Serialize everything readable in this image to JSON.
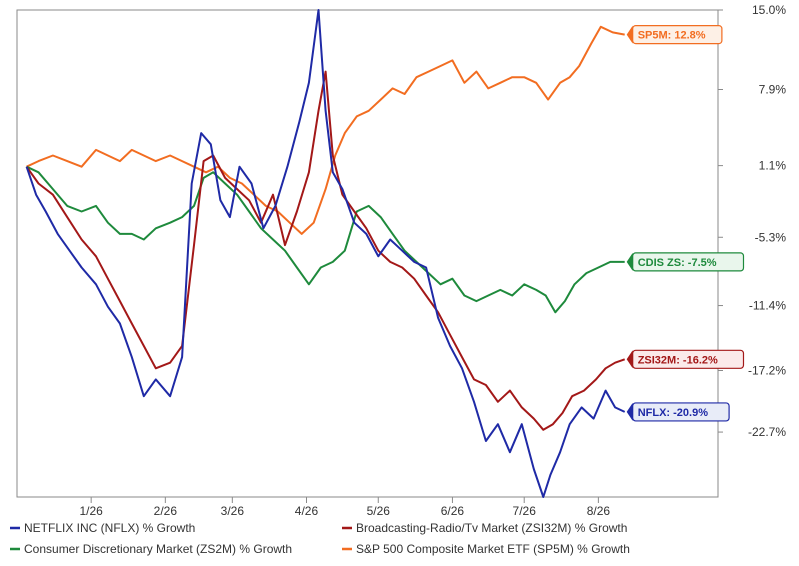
{
  "chart_data": {
    "type": "line",
    "title": "",
    "xlabel": "",
    "ylabel": "",
    "x_range": [
      "2025-12-01",
      "2026-09-20"
    ],
    "ylim": [
      -28.5,
      15.0
    ],
    "x_ticks": [
      {
        "label": "1/26",
        "date": "2026-01-01"
      },
      {
        "label": "2/26",
        "date": "2026-02-01"
      },
      {
        "label": "3/26",
        "date": "2026-03-01"
      },
      {
        "label": "4/26",
        "date": "2026-04-01"
      },
      {
        "label": "5/26",
        "date": "2026-05-01"
      },
      {
        "label": "6/26",
        "date": "2026-06-01"
      },
      {
        "label": "7/26",
        "date": "2026-07-01"
      },
      {
        "label": "8/26",
        "date": "2026-08-01"
      }
    ],
    "y_ticks": [
      {
        "value": 15.0,
        "label": "15.0%"
      },
      {
        "value": 7.9,
        "label": "7.9%"
      },
      {
        "value": 1.1,
        "label": "1.1%"
      },
      {
        "value": -5.3,
        "label": "-5.3%"
      },
      {
        "value": -11.4,
        "label": "-11.4%"
      },
      {
        "value": -17.2,
        "label": "-17.2%"
      },
      {
        "value": -22.7,
        "label": "-22.7%"
      }
    ],
    "grid": false,
    "legend_position": "bottom",
    "series": [
      {
        "name": "NETFLIX INC (NFLX) % Growth",
        "color": "#1f2aa6",
        "badge": "NFLX: -20.9%",
        "x": [
          "2025-12-05",
          "2025-12-09",
          "2025-12-13",
          "2025-12-18",
          "2025-12-23",
          "2025-12-28",
          "2026-01-03",
          "2026-01-08",
          "2026-01-13",
          "2026-01-18",
          "2026-01-23",
          "2026-01-28",
          "2026-02-03",
          "2026-02-08",
          "2026-02-12",
          "2026-02-16",
          "2026-02-20",
          "2026-02-24",
          "2026-02-28",
          "2026-03-04",
          "2026-03-09",
          "2026-03-14",
          "2026-03-19",
          "2026-03-24",
          "2026-03-29",
          "2026-04-02",
          "2026-04-06",
          "2026-04-09",
          "2026-04-12",
          "2026-04-16",
          "2026-04-21",
          "2026-04-26",
          "2026-05-01",
          "2026-05-06",
          "2026-05-11",
          "2026-05-16",
          "2026-05-21",
          "2026-05-26",
          "2026-05-31",
          "2026-06-05",
          "2026-06-10",
          "2026-06-15",
          "2026-06-20",
          "2026-06-25",
          "2026-06-30",
          "2026-07-05",
          "2026-07-09",
          "2026-07-12",
          "2026-07-16",
          "2026-07-20",
          "2026-07-25",
          "2026-07-30",
          "2026-08-04",
          "2026-08-08",
          "2026-08-12"
        ],
        "values": [
          1.0,
          -1.5,
          -3.0,
          -5.0,
          -6.5,
          -8.0,
          -9.5,
          -11.5,
          -13.0,
          -16.0,
          -19.5,
          -18.0,
          -19.5,
          -16.0,
          -0.5,
          4.0,
          3.0,
          -2.0,
          -3.5,
          1.0,
          -0.5,
          -4.5,
          -2.5,
          1.0,
          5.0,
          8.5,
          15.0,
          6.0,
          0.5,
          -1.0,
          -4.0,
          -5.0,
          -7.0,
          -5.5,
          -6.5,
          -7.5,
          -8.0,
          -12.5,
          -15.0,
          -17.0,
          -20.0,
          -23.5,
          -22.0,
          -24.5,
          -22.0,
          -26.0,
          -28.5,
          -26.5,
          -24.5,
          -22.0,
          -20.5,
          -21.5,
          -19.0,
          -20.5,
          -20.9
        ]
      },
      {
        "name": "Broadcasting-Radio/Tv Market (ZSI32M) % Growth",
        "color": "#a31818",
        "badge": "ZSI32M: -16.2%",
        "x": [
          "2025-12-05",
          "2025-12-10",
          "2025-12-16",
          "2025-12-22",
          "2025-12-28",
          "2026-01-03",
          "2026-01-08",
          "2026-01-13",
          "2026-01-18",
          "2026-01-23",
          "2026-01-28",
          "2026-02-03",
          "2026-02-08",
          "2026-02-13",
          "2026-02-17",
          "2026-02-21",
          "2026-02-26",
          "2026-03-03",
          "2026-03-08",
          "2026-03-13",
          "2026-03-18",
          "2026-03-23",
          "2026-03-28",
          "2026-04-02",
          "2026-04-06",
          "2026-04-09",
          "2026-04-12",
          "2026-04-16",
          "2026-04-21",
          "2026-04-26",
          "2026-05-01",
          "2026-05-06",
          "2026-05-11",
          "2026-05-16",
          "2026-05-21",
          "2026-05-26",
          "2026-05-31",
          "2026-06-05",
          "2026-06-10",
          "2026-06-15",
          "2026-06-20",
          "2026-06-25",
          "2026-06-30",
          "2026-07-05",
          "2026-07-09",
          "2026-07-13",
          "2026-07-17",
          "2026-07-21",
          "2026-07-26",
          "2026-07-31",
          "2026-08-04",
          "2026-08-08",
          "2026-08-12"
        ],
        "values": [
          1.0,
          -0.5,
          -1.5,
          -3.5,
          -5.5,
          -7.0,
          -9.0,
          -11.0,
          -13.0,
          -15.0,
          -17.0,
          -16.5,
          -15.0,
          -6.0,
          1.5,
          2.0,
          0.0,
          -1.0,
          -2.0,
          -4.0,
          -1.5,
          -6.0,
          -3.0,
          0.5,
          6.0,
          9.5,
          2.0,
          -1.5,
          -3.0,
          -4.5,
          -6.5,
          -7.5,
          -8.0,
          -9.0,
          -10.5,
          -12.0,
          -14.0,
          -16.0,
          -18.0,
          -18.5,
          -20.0,
          -19.0,
          -20.5,
          -21.5,
          -22.5,
          -22.0,
          -21.0,
          -19.5,
          -19.0,
          -18.0,
          -17.0,
          -16.5,
          -16.2
        ]
      },
      {
        "name": "Consumer Discretionary Market (ZS2M) % Growth",
        "color": "#1e8a3c",
        "badge": "CDIS ZS: -7.5%",
        "x": [
          "2025-12-05",
          "2025-12-10",
          "2025-12-16",
          "2025-12-22",
          "2025-12-28",
          "2026-01-03",
          "2026-01-08",
          "2026-01-13",
          "2026-01-18",
          "2026-01-23",
          "2026-01-28",
          "2026-02-03",
          "2026-02-08",
          "2026-02-13",
          "2026-02-17",
          "2026-02-21",
          "2026-02-26",
          "2026-03-03",
          "2026-03-08",
          "2026-03-13",
          "2026-03-18",
          "2026-03-23",
          "2026-03-28",
          "2026-04-02",
          "2026-04-07",
          "2026-04-12",
          "2026-04-17",
          "2026-04-22",
          "2026-04-27",
          "2026-05-02",
          "2026-05-07",
          "2026-05-12",
          "2026-05-17",
          "2026-05-22",
          "2026-05-27",
          "2026-06-01",
          "2026-06-06",
          "2026-06-11",
          "2026-06-16",
          "2026-06-21",
          "2026-06-26",
          "2026-07-01",
          "2026-07-06",
          "2026-07-10",
          "2026-07-14",
          "2026-07-18",
          "2026-07-22",
          "2026-07-27",
          "2026-08-01",
          "2026-08-06",
          "2026-08-12"
        ],
        "values": [
          1.0,
          0.5,
          -1.0,
          -2.5,
          -3.0,
          -2.5,
          -4.0,
          -5.0,
          -5.0,
          -5.5,
          -4.5,
          -4.0,
          -3.5,
          -2.5,
          0.0,
          0.5,
          -0.5,
          -1.5,
          -3.0,
          -4.5,
          -5.5,
          -6.5,
          -8.0,
          -9.5,
          -8.0,
          -7.5,
          -6.5,
          -3.0,
          -2.5,
          -3.5,
          -5.0,
          -6.5,
          -7.5,
          -8.5,
          -9.5,
          -9.0,
          -10.5,
          -11.0,
          -10.5,
          -10.0,
          -10.5,
          -9.5,
          -10.0,
          -10.5,
          -12.0,
          -11.0,
          -9.5,
          -8.5,
          -8.0,
          -7.5,
          -7.5
        ]
      },
      {
        "name": "S&P 500 Composite Market ETF (SP5M) % Growth",
        "color": "#f26d21",
        "badge": "SP5M: 12.8%",
        "x": [
          "2025-12-05",
          "2025-12-10",
          "2025-12-16",
          "2025-12-22",
          "2025-12-28",
          "2026-01-03",
          "2026-01-08",
          "2026-01-13",
          "2026-01-18",
          "2026-01-23",
          "2026-01-28",
          "2026-02-03",
          "2026-02-08",
          "2026-02-13",
          "2026-02-18",
          "2026-02-23",
          "2026-02-28",
          "2026-03-05",
          "2026-03-10",
          "2026-03-15",
          "2026-03-20",
          "2026-03-25",
          "2026-03-30",
          "2026-04-04",
          "2026-04-09",
          "2026-04-13",
          "2026-04-17",
          "2026-04-22",
          "2026-04-27",
          "2026-05-02",
          "2026-05-07",
          "2026-05-12",
          "2026-05-17",
          "2026-05-22",
          "2026-05-27",
          "2026-06-01",
          "2026-06-06",
          "2026-06-11",
          "2026-06-16",
          "2026-06-21",
          "2026-06-26",
          "2026-07-01",
          "2026-07-06",
          "2026-07-11",
          "2026-07-16",
          "2026-07-20",
          "2026-07-24",
          "2026-07-29",
          "2026-08-02",
          "2026-08-07",
          "2026-08-12"
        ],
        "values": [
          1.0,
          1.5,
          2.0,
          1.5,
          1.0,
          2.5,
          2.0,
          1.5,
          2.5,
          2.0,
          1.5,
          2.0,
          1.5,
          1.0,
          0.5,
          1.0,
          0.0,
          -0.5,
          -1.5,
          -2.5,
          -3.0,
          -4.0,
          -5.0,
          -4.0,
          -1.0,
          2.0,
          4.0,
          5.5,
          6.0,
          7.0,
          8.0,
          7.5,
          9.0,
          9.5,
          10.0,
          10.5,
          8.5,
          9.5,
          8.0,
          8.5,
          9.0,
          9.0,
          8.5,
          7.0,
          8.5,
          9.0,
          10.0,
          12.0,
          13.5,
          13.0,
          12.8
        ]
      }
    ]
  }
}
